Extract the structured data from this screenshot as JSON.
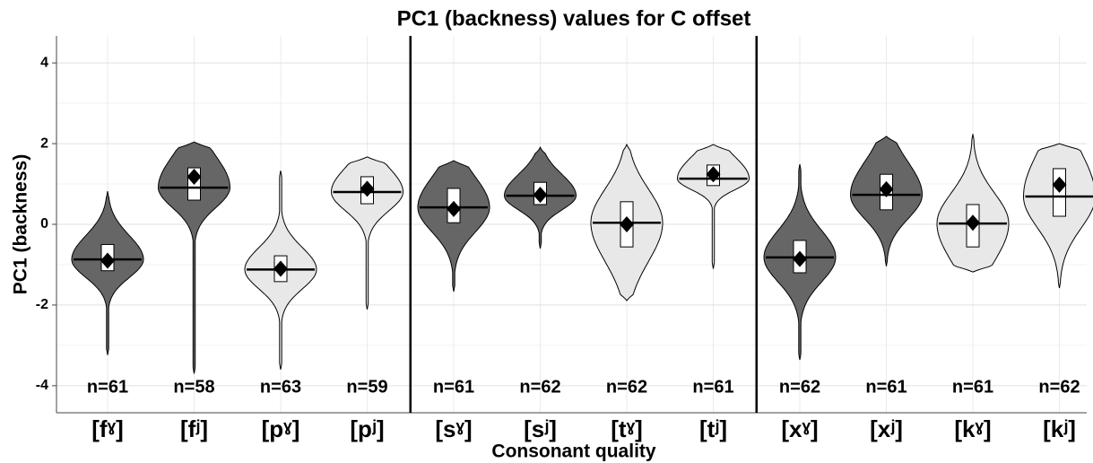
{
  "chart_data": {
    "type": "violin",
    "title": "PC1 (backness) values for C offset",
    "x_label": "Consonant quality",
    "y_label": "PC1 (backness)",
    "categories": [
      "[fˠ]",
      "[fʲ]",
      "[pˠ]",
      "[pʲ]",
      "[sˠ]",
      "[sʲ]",
      "[tˠ]",
      "[tʲ]",
      "[xˠ]",
      "[xʲ]",
      "[kˠ]",
      "[kʲ]"
    ],
    "colors": [
      "#666666",
      "#666666",
      "#e8e8e8",
      "#e8e8e8",
      "#666666",
      "#666666",
      "#e8e8e8",
      "#e8e8e8",
      "#666666",
      "#666666",
      "#e8e8e8",
      "#e8e8e8"
    ],
    "min": [
      -3.24,
      -3.7,
      -3.6,
      -2.11,
      -1.67,
      -0.6,
      -1.89,
      -1.1,
      -3.36,
      -1.04,
      -1.18,
      -1.58
    ],
    "max": [
      0.82,
      2.04,
      1.33,
      1.67,
      1.58,
      1.91,
      1.98,
      1.98,
      1.49,
      2.18,
      2.24,
      2.0
    ],
    "q1": [
      -1.15,
      0.6,
      -1.42,
      0.51,
      0.04,
      0.49,
      -0.56,
      0.96,
      -1.2,
      0.36,
      -0.56,
      0.2
    ],
    "q3": [
      -0.5,
      1.4,
      -0.78,
      1.18,
      0.89,
      1.04,
      0.56,
      1.47,
      -0.4,
      1.24,
      0.49,
      1.38
    ],
    "median": [
      -0.87,
      0.91,
      -1.12,
      0.8,
      0.42,
      0.71,
      0.04,
      1.13,
      -0.82,
      0.73,
      0.02,
      0.69
    ],
    "mean": [
      -0.9,
      1.18,
      -1.1,
      0.88,
      0.38,
      0.73,
      0.0,
      1.24,
      -0.86,
      0.87,
      0.04,
      0.98
    ],
    "n_labels": [
      "n=61",
      "n=58",
      "n=63",
      "n=59",
      "n=61",
      "n=62",
      "n=62",
      "n=61",
      "n=62",
      "n=61",
      "n=61",
      "n=62"
    ],
    "ylim": [
      -4.67,
      4.67
    ],
    "yticks": [
      -4,
      -2,
      0,
      2,
      4
    ],
    "yminor": [
      -3,
      -1,
      1,
      3
    ],
    "grid": true
  }
}
